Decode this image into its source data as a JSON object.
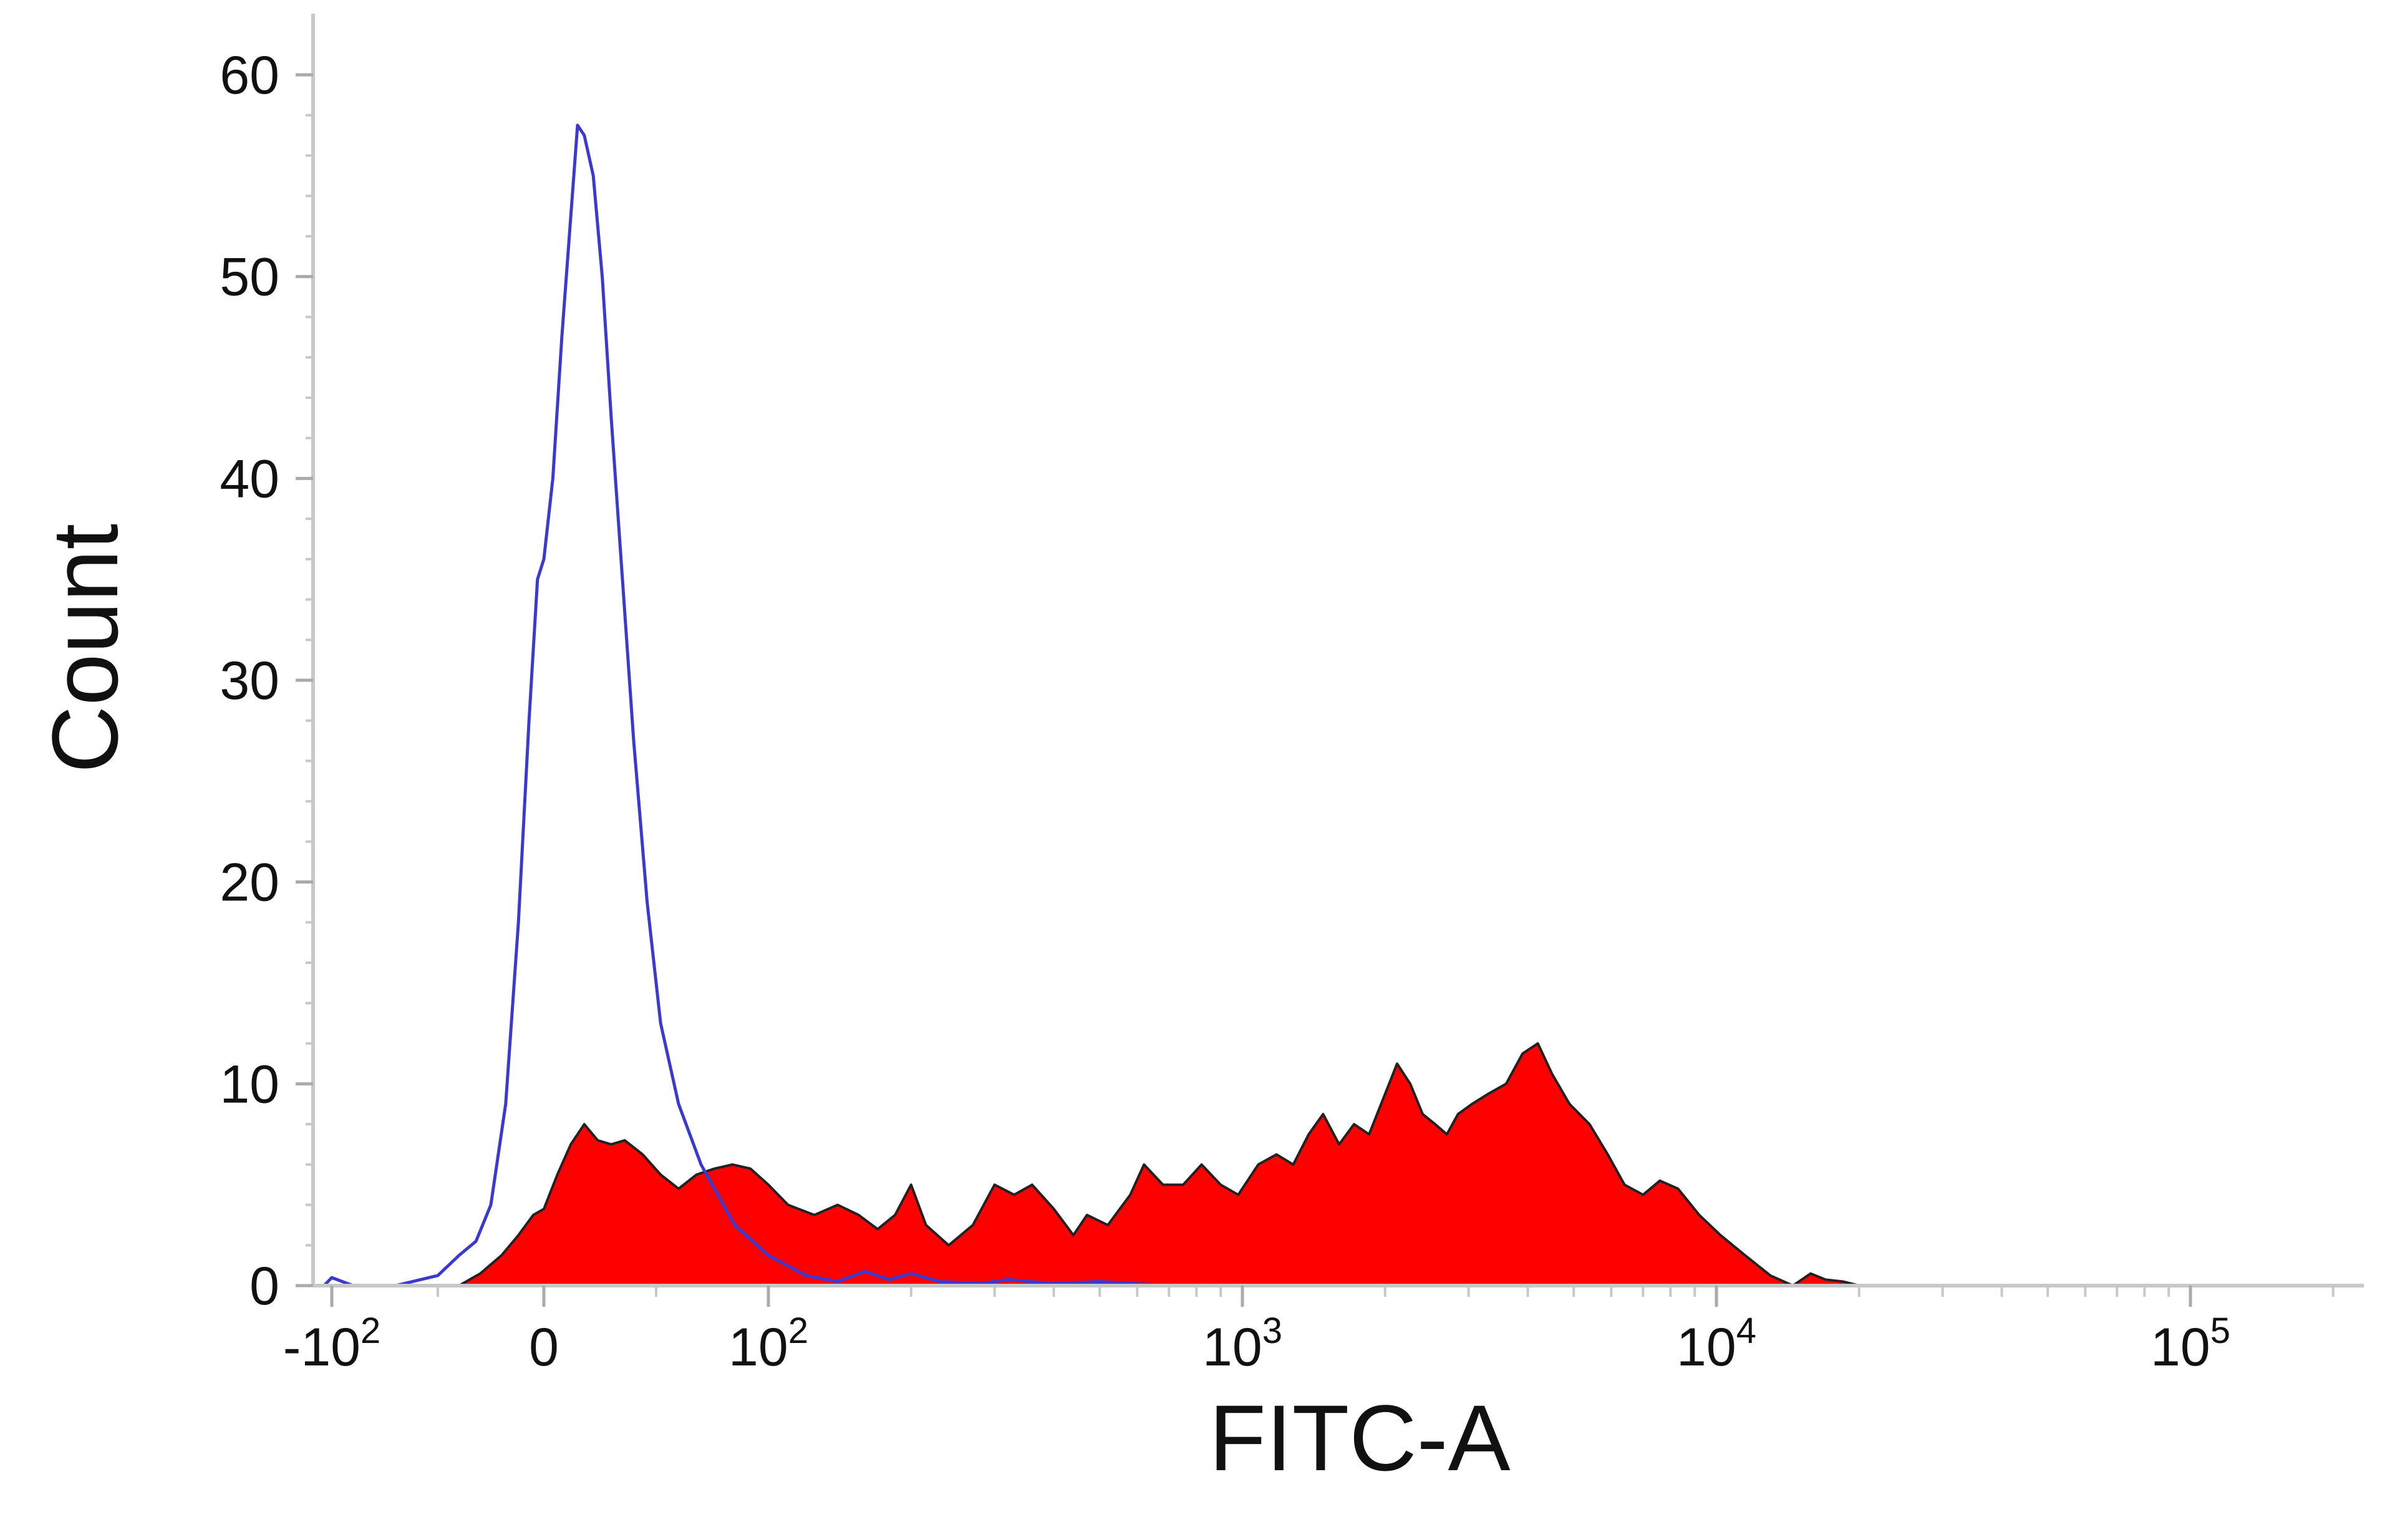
{
  "chart_data": {
    "type": "area",
    "title": "",
    "xlabel": "FITC-A",
    "ylabel": "Count",
    "x_scale": "biexponential",
    "xlim": [
      -120,
      230000
    ],
    "ylim": [
      0,
      62
    ],
    "grid": false,
    "legend": "none",
    "y_ticks": [
      {
        "value": 0,
        "label": "0"
      },
      {
        "value": 10,
        "label": "10"
      },
      {
        "value": 20,
        "label": "20"
      },
      {
        "value": 30,
        "label": "30"
      },
      {
        "value": 40,
        "label": "40"
      },
      {
        "value": 50,
        "label": "50"
      },
      {
        "value": 60,
        "label": "60"
      }
    ],
    "x_ticks": [
      {
        "value": -100,
        "base": "-10",
        "exp": "2"
      },
      {
        "value": 0,
        "base": "0",
        "exp": ""
      },
      {
        "value": 100,
        "base": "10",
        "exp": "2"
      },
      {
        "value": 1000,
        "base": "10",
        "exp": "3"
      },
      {
        "value": 10000,
        "base": "10",
        "exp": "4"
      },
      {
        "value": 100000,
        "base": "10",
        "exp": "5"
      }
    ],
    "series": [
      {
        "style": "outline",
        "color": "#3a3ad0",
        "points": [
          [
            -110,
            0
          ],
          [
            -100,
            0.4
          ],
          [
            -90,
            0
          ],
          [
            -70,
            0
          ],
          [
            -50,
            0.5
          ],
          [
            -40,
            1.5
          ],
          [
            -32,
            2.2
          ],
          [
            -25,
            4
          ],
          [
            -18,
            9
          ],
          [
            -12,
            18
          ],
          [
            -7,
            28
          ],
          [
            -3,
            35
          ],
          [
            0,
            36
          ],
          [
            4,
            40
          ],
          [
            8,
            47
          ],
          [
            12,
            53
          ],
          [
            15,
            57.5
          ],
          [
            18,
            57
          ],
          [
            22,
            55
          ],
          [
            26,
            50
          ],
          [
            30,
            43
          ],
          [
            35,
            35
          ],
          [
            40,
            27
          ],
          [
            46,
            19
          ],
          [
            52,
            13
          ],
          [
            60,
            9
          ],
          [
            70,
            6
          ],
          [
            85,
            3
          ],
          [
            100,
            1.5
          ],
          [
            120,
            0.5
          ],
          [
            140,
            0.2
          ],
          [
            160,
            0.7
          ],
          [
            180,
            0.3
          ],
          [
            200,
            0.6
          ],
          [
            230,
            0.2
          ],
          [
            280,
            0.1
          ],
          [
            320,
            0.3
          ],
          [
            400,
            0.1
          ],
          [
            500,
            0.2
          ],
          [
            700,
            0
          ],
          [
            230000,
            0
          ]
        ]
      },
      {
        "style": "filled",
        "color": "#ff0000",
        "outline": "#222222",
        "points": [
          [
            -40,
            0
          ],
          [
            -30,
            0.6
          ],
          [
            -20,
            1.5
          ],
          [
            -12,
            2.5
          ],
          [
            -5,
            3.5
          ],
          [
            0,
            3.8
          ],
          [
            6,
            5.5
          ],
          [
            12,
            7
          ],
          [
            18,
            8
          ],
          [
            24,
            7.2
          ],
          [
            30,
            7
          ],
          [
            36,
            7.2
          ],
          [
            44,
            6.5
          ],
          [
            52,
            5.5
          ],
          [
            60,
            4.8
          ],
          [
            68,
            5.5
          ],
          [
            76,
            5.8
          ],
          [
            84,
            6
          ],
          [
            92,
            5.8
          ],
          [
            100,
            5
          ],
          [
            110,
            4
          ],
          [
            125,
            3.5
          ],
          [
            140,
            4
          ],
          [
            155,
            3.5
          ],
          [
            170,
            2.8
          ],
          [
            185,
            3.5
          ],
          [
            200,
            5
          ],
          [
            215,
            3
          ],
          [
            240,
            2
          ],
          [
            270,
            3
          ],
          [
            300,
            5
          ],
          [
            330,
            4.5
          ],
          [
            360,
            5
          ],
          [
            400,
            3.8
          ],
          [
            440,
            2.5
          ],
          [
            470,
            3.5
          ],
          [
            520,
            3
          ],
          [
            580,
            4.5
          ],
          [
            620,
            6
          ],
          [
            680,
            5
          ],
          [
            750,
            5
          ],
          [
            820,
            6
          ],
          [
            900,
            5
          ],
          [
            980,
            4.5
          ],
          [
            1080,
            6
          ],
          [
            1180,
            6.5
          ],
          [
            1280,
            6
          ],
          [
            1380,
            7.5
          ],
          [
            1480,
            8.5
          ],
          [
            1600,
            7
          ],
          [
            1720,
            8
          ],
          [
            1850,
            7.5
          ],
          [
            2000,
            9.5
          ],
          [
            2120,
            11
          ],
          [
            2260,
            10
          ],
          [
            2400,
            8.5
          ],
          [
            2550,
            8
          ],
          [
            2700,
            7.5
          ],
          [
            2850,
            8.5
          ],
          [
            3050,
            9
          ],
          [
            3300,
            9.5
          ],
          [
            3600,
            10
          ],
          [
            3900,
            11.5
          ],
          [
            4200,
            12
          ],
          [
            4500,
            10.5
          ],
          [
            4900,
            9
          ],
          [
            5400,
            8
          ],
          [
            5900,
            6.5
          ],
          [
            6400,
            5
          ],
          [
            7000,
            4.5
          ],
          [
            7600,
            5.2
          ],
          [
            8300,
            4.8
          ],
          [
            9200,
            3.5
          ],
          [
            10200,
            2.5
          ],
          [
            11500,
            1.5
          ],
          [
            13000,
            0.5
          ],
          [
            14500,
            0
          ],
          [
            15800,
            0.6
          ],
          [
            17000,
            0.3
          ],
          [
            18500,
            0.2
          ],
          [
            20000,
            0
          ],
          [
            230000,
            0
          ]
        ]
      }
    ]
  }
}
